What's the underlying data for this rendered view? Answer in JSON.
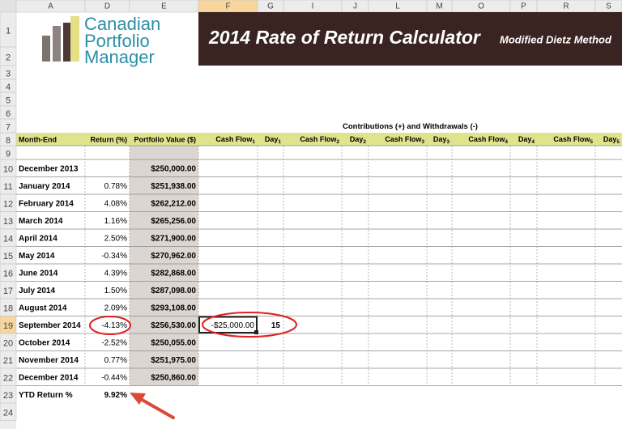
{
  "columns": [
    "A",
    "D",
    "E",
    "F",
    "G",
    "I",
    "J",
    "L",
    "M",
    "O",
    "P",
    "R",
    "S"
  ],
  "row_numbers": [
    1,
    2,
    3,
    4,
    5,
    6,
    7,
    8,
    9,
    10,
    11,
    12,
    13,
    14,
    15,
    16,
    17,
    18,
    19,
    20,
    21,
    22,
    23,
    24
  ],
  "logo": [
    "Canadian",
    "Portfolio",
    "Manager"
  ],
  "banner": {
    "title": "2014 Rate of Return Calculator",
    "subtitle": "Modified Dietz Method"
  },
  "section_title": "Contributions (+) and Withdrawals (-)",
  "headers": {
    "month": "Month-End",
    "return": "Return (%)",
    "value": "Portfolio Value ($)",
    "flows": [
      {
        "cash": "Cash Flow",
        "day": "Day",
        "n": "1"
      },
      {
        "cash": "Cash Flow",
        "day": "Day",
        "n": "2"
      },
      {
        "cash": "Cash Flow",
        "day": "Day",
        "n": "3"
      },
      {
        "cash": "Cash Flow",
        "day": "Day",
        "n": "4"
      },
      {
        "cash": "Cash Flow",
        "day": "Day",
        "n": "5"
      }
    ]
  },
  "table": {
    "rows": [
      {
        "month": "December 2013",
        "return": null,
        "value": "$250,000.00"
      },
      {
        "month": "January 2014",
        "return": "0.78%",
        "value": "$251,938.00"
      },
      {
        "month": "February 2014",
        "return": "4.08%",
        "value": "$262,212.00"
      },
      {
        "month": "March 2014",
        "return": "1.16%",
        "value": "$265,256.00"
      },
      {
        "month": "April 2014",
        "return": "2.50%",
        "value": "$271,900.00"
      },
      {
        "month": "May 2014",
        "return": "-0.34%",
        "value": "$270,962.00"
      },
      {
        "month": "June 2014",
        "return": "4.39%",
        "value": "$282,868.00"
      },
      {
        "month": "July 2014",
        "return": "1.50%",
        "value": "$287,098.00"
      },
      {
        "month": "August 2014",
        "return": "2.09%",
        "value": "$293,108.00"
      },
      {
        "month": "September 2014",
        "return": "-4.13%",
        "value": "$256,530.00",
        "cash_flow": "-$25,000.00",
        "day": "15"
      },
      {
        "month": "October 2014",
        "return": "-2.52%",
        "value": "$250,055.00"
      },
      {
        "month": "November 2014",
        "return": "0.77%",
        "value": "$251,975.00"
      },
      {
        "month": "December 2014",
        "return": "-0.44%",
        "value": "$250,860.00"
      }
    ]
  },
  "ytd": {
    "label": "YTD Return %",
    "value": "9.92%"
  }
}
